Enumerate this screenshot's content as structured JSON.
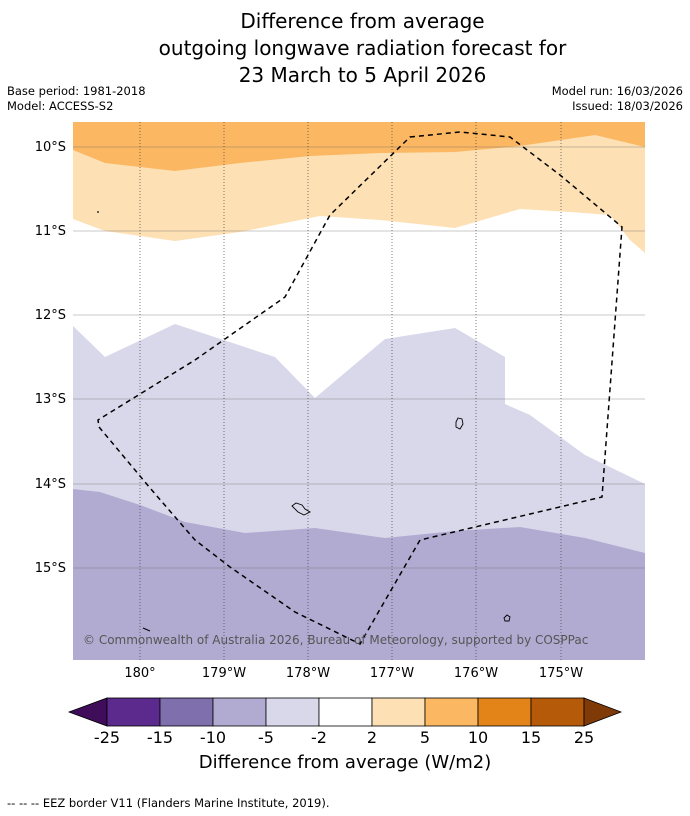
{
  "title": {
    "line1": "Difference from average",
    "line2": "outgoing longwave radiation forecast for",
    "line3": "23 March to 5 April 2026"
  },
  "meta": {
    "base_period": "Base period: 1981-2018",
    "model": "Model: ACCESS-S2",
    "model_run": "Model run: 16/03/2026",
    "issued": "Issued: 18/03/2026"
  },
  "map": {
    "lat_labels": [
      "10°S",
      "11°S",
      "12°S",
      "13°S",
      "14°S",
      "15°S"
    ],
    "lon_labels": [
      "180°",
      "179°W",
      "178°W",
      "177°W",
      "176°W",
      "175°W"
    ],
    "copyright": "© Commonwealth of Australia 2026, Bureau of Meteorology, supported by COSPPac",
    "eez_label": "EEZ border",
    "islands": [
      "island-1",
      "island-2",
      "island-3",
      "island-4"
    ]
  },
  "colorbar": {
    "ticks": [
      "-25",
      "-15",
      "-10",
      "-5",
      "-2",
      "2",
      "5",
      "10",
      "15",
      "25"
    ],
    "colors": [
      "#3f0d5a",
      "#5b2a8c",
      "#7f6fac",
      "#b1abd2",
      "#d8d8ea",
      "#ffffff",
      "#fde0b4",
      "#fbb762",
      "#e38418",
      "#b45a09",
      "#7f3a08"
    ],
    "title": "Difference from average (W/m2)"
  },
  "source_note": "--  --  -- EEZ border V11 (Flanders Marine Institute, 2019)."
}
